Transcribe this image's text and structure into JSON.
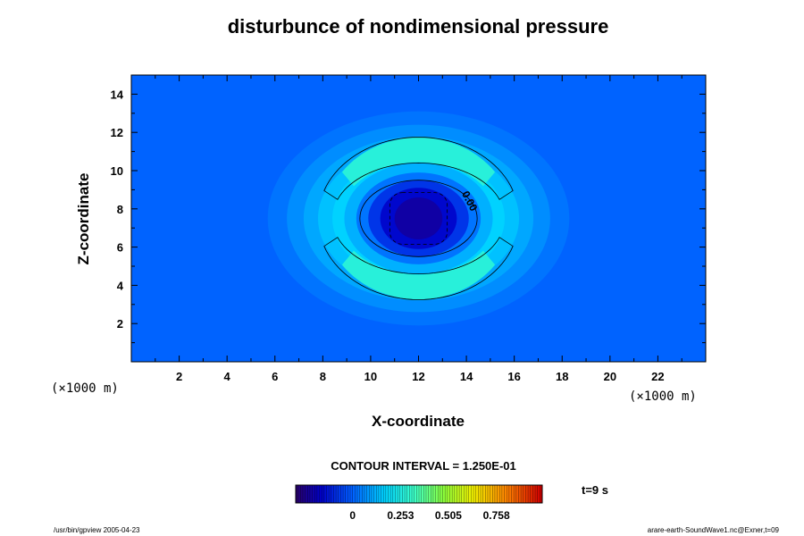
{
  "chart_data": {
    "type": "contour",
    "title": "disturbunce of nondimensional pressure",
    "xlabel": "X-coordinate",
    "ylabel": "Z-coordinate",
    "x_unit": "(×1000 m)",
    "y_unit": "(×1000 m)",
    "xlim": [
      0,
      24
    ],
    "ylim": [
      0,
      15
    ],
    "x_ticks": [
      2,
      4,
      6,
      8,
      10,
      12,
      14,
      16,
      18,
      20,
      22
    ],
    "y_ticks": [
      2,
      4,
      6,
      8,
      10,
      12,
      14
    ],
    "center": {
      "x": 12,
      "z": 7.5
    },
    "contour_interval_text": "CONTOUR INTERVAL = 1.250E-01",
    "contour_label": "0.00",
    "colorbar_ticks": [
      "0",
      "0.253",
      "0.505",
      "0.758"
    ],
    "colorbar_range": [
      -0.3,
      1.0
    ],
    "time_label": "t=9 s"
  },
  "footer": {
    "left": "/usr/bin/gpview 2005-04-23",
    "right": "arare-earth-SoundWave1.nc@Exner,t=09"
  }
}
